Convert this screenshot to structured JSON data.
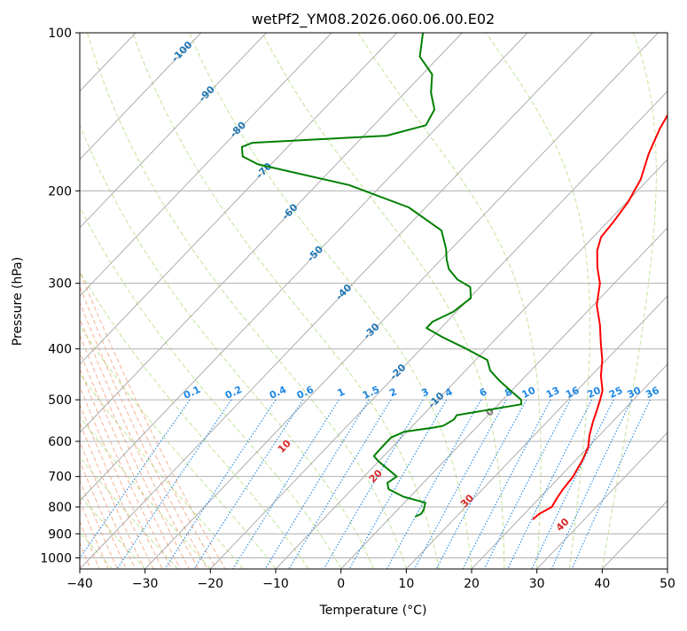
{
  "chart_data": {
    "type": "line",
    "subtype": "skew-t log-p sounding",
    "title": "wetPf2_YM08.2026.060.06.00.E02",
    "xlabel": "Temperature (°C)",
    "ylabel": "Pressure (hPa)",
    "xlim": [
      -40,
      50
    ],
    "ylim": [
      1050,
      100
    ],
    "y_scale": "log",
    "grid": true,
    "x_ticks": [
      -40,
      -30,
      -20,
      -10,
      0,
      10,
      20,
      30,
      40,
      50
    ],
    "y_ticks": [
      100,
      200,
      300,
      400,
      500,
      600,
      700,
      800,
      900,
      1000
    ],
    "colors": {
      "temperature": "#ff0000",
      "dewpoint": "#008000",
      "isotherm": "#999999",
      "dry_adiabat": "#f4a582",
      "moist_adiabat": "#a6d96a",
      "mixing_ratio": "#1e88e5",
      "isotherm_label": "#1f77b4",
      "dry_adiabat_label": "#d62728"
    },
    "isotherm_labels": [
      -100,
      -90,
      -80,
      -70,
      -60,
      -50,
      -40,
      -30,
      -20,
      -10,
      0
    ],
    "dry_adiabat_labels": [
      10,
      20,
      30,
      40
    ],
    "mixing_ratio_labels": [
      "0.1",
      "0.2",
      "0.4",
      "0.6",
      "1",
      "1.5",
      "2",
      "3",
      "4",
      "6",
      "8",
      "10",
      "13",
      "16",
      "20",
      "25",
      "30",
      "36"
    ],
    "series": [
      {
        "name": "Temperature",
        "points": [
          [
            22.1,
            845
          ],
          [
            22.3,
            825
          ],
          [
            23.2,
            800
          ],
          [
            22.7,
            770
          ],
          [
            22.3,
            740
          ],
          [
            22.0,
            700
          ],
          [
            21.6,
            680
          ],
          [
            21.0,
            650
          ],
          [
            20.0,
            615
          ],
          [
            18.5,
            585
          ],
          [
            17.0,
            550
          ],
          [
            16.0,
            525
          ],
          [
            14.9,
            500
          ],
          [
            13.9,
            480
          ],
          [
            11.5,
            450
          ],
          [
            9.4,
            420
          ],
          [
            6.7,
            390
          ],
          [
            3.9,
            360
          ],
          [
            0.5,
            330
          ],
          [
            -2.2,
            300
          ],
          [
            -4.9,
            280
          ],
          [
            -7.4,
            260
          ],
          [
            -8.8,
            245
          ],
          [
            -9.1,
            230
          ],
          [
            -9.8,
            210
          ],
          [
            -11.2,
            190
          ],
          [
            -13.7,
            170
          ],
          [
            -15.7,
            152
          ],
          [
            -16.8,
            140
          ],
          [
            -17.8,
            128
          ],
          [
            -19.5,
            118
          ],
          [
            -21.9,
            108
          ],
          [
            -23.5,
            100
          ]
        ]
      },
      {
        "name": "Dewpoint",
        "points": [
          [
            3.7,
            835
          ],
          [
            4.2,
            825
          ],
          [
            4.0,
            810
          ],
          [
            3.2,
            785
          ],
          [
            -1.0,
            765
          ],
          [
            -4.4,
            740
          ],
          [
            -5.5,
            720
          ],
          [
            -5.0,
            700
          ],
          [
            -10.0,
            655
          ],
          [
            -11.5,
            640
          ],
          [
            -11.6,
            610
          ],
          [
            -11.6,
            590
          ],
          [
            -10.4,
            575
          ],
          [
            -6.5,
            565
          ],
          [
            -5.3,
            560
          ],
          [
            -4.6,
            545
          ],
          [
            -4.8,
            535
          ],
          [
            3.5,
            510
          ],
          [
            2.8,
            500
          ],
          [
            -0.2,
            480
          ],
          [
            -3.3,
            460
          ],
          [
            -6.2,
            440
          ],
          [
            -8.2,
            420
          ],
          [
            -13.0,
            400
          ],
          [
            -18.4,
            380
          ],
          [
            -22.2,
            365
          ],
          [
            -22.2,
            355
          ],
          [
            -20.5,
            340
          ],
          [
            -19.8,
            320
          ],
          [
            -21.5,
            305
          ],
          [
            -24.6,
            295
          ],
          [
            -27.4,
            282
          ],
          [
            -29.2,
            270
          ],
          [
            -30.8,
            258
          ],
          [
            -34.2,
            238
          ],
          [
            -42.6,
            215
          ],
          [
            -55.0,
            195
          ],
          [
            -72.0,
            178
          ],
          [
            -75.5,
            172
          ],
          [
            -77.0,
            165
          ],
          [
            -76.0,
            162
          ],
          [
            -56.5,
            157
          ],
          [
            -52.0,
            150
          ],
          [
            -53.0,
            140
          ],
          [
            -56.0,
            130
          ],
          [
            -58.5,
            120
          ],
          [
            -63.0,
            111
          ],
          [
            -66.0,
            100
          ]
        ]
      }
    ]
  }
}
